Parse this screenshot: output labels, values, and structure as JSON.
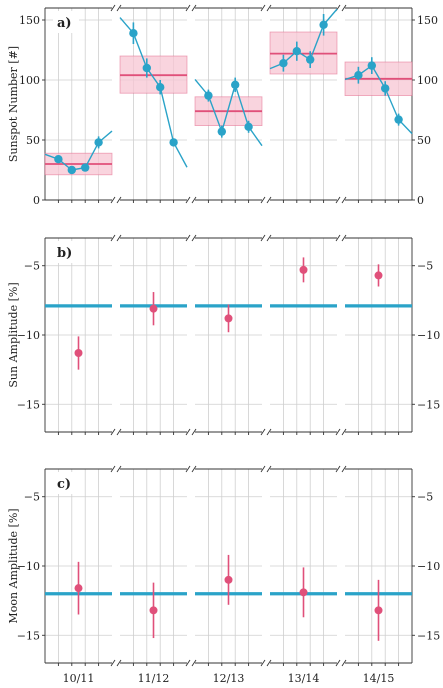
{
  "colors": {
    "blue": "#2aa3c8",
    "pink": "#e0507a",
    "band": "#f7c6d3",
    "grid": "#cfcfcf",
    "axis": "#333333"
  },
  "categories": [
    "10/11",
    "11/12",
    "12/13",
    "13/14",
    "14/15"
  ],
  "chart_data": [
    {
      "type": "line",
      "panel": "a)",
      "ylabel": "Sunspot Number [#]",
      "ylim": [
        0,
        160
      ],
      "yticks": [
        0,
        50,
        100,
        150
      ],
      "grid": true,
      "series": [
        {
          "values": [
            [
              34,
              25,
              27,
              48
            ],
            [
              139,
              110,
              94,
              48
            ],
            [
              87,
              57,
              96,
              61
            ],
            [
              114,
              124,
              117,
              146
            ],
            [
              104,
              112,
              93,
              67
            ]
          ],
          "errors": [
            [
              3,
              3,
              3,
              5
            ],
            [
              9,
              8,
              6,
              3
            ],
            [
              5,
              5,
              6,
              5
            ],
            [
              7,
              8,
              7,
              9
            ],
            [
              7,
              7,
              6,
              5
            ]
          ]
        }
      ],
      "band_mean": [
        30,
        104,
        74,
        122,
        101
      ],
      "band_low": [
        21,
        89,
        62,
        105,
        87
      ],
      "band_high": [
        39,
        120,
        86,
        140,
        115
      ]
    },
    {
      "type": "scatter",
      "panel": "b)",
      "ylabel": "Sun Amplitude [%]",
      "ylim": [
        -17,
        -3
      ],
      "yticks": [
        -15,
        -10,
        -5
      ],
      "grid": true,
      "values": [
        -11.3,
        -8.1,
        -8.8,
        -5.3,
        -5.7
      ],
      "errors": [
        1.2,
        1.2,
        1.0,
        0.9,
        0.8
      ],
      "reference": -7.9
    },
    {
      "type": "scatter",
      "panel": "c)",
      "ylabel": "Moon Amplitude [%]",
      "ylim": [
        -17,
        -3
      ],
      "yticks": [
        -15,
        -10,
        -5
      ],
      "grid": true,
      "values": [
        -11.6,
        -13.2,
        -11.0,
        -11.9,
        -13.2
      ],
      "errors": [
        1.9,
        2.0,
        1.8,
        1.8,
        2.2
      ],
      "reference": -12.0
    }
  ]
}
